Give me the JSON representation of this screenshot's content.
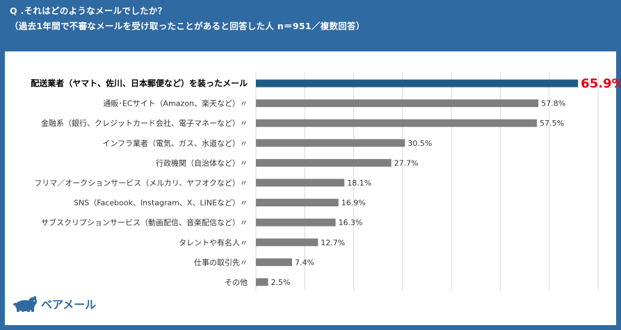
{
  "header": {
    "question": "Q .それはどのようなメールでしたか？",
    "subtitle": "（過去1年間で不審なメールを受け取ったことがあると回答した人 n＝951／複数回答）"
  },
  "brand": {
    "name": "ベアメール",
    "logo_icon": "bear-logo-icon"
  },
  "colors": {
    "background": "#2f6aa2",
    "highlight_bar": "#1e5c86",
    "bar": "#7f7f7f",
    "highlight_value": "#e60012",
    "grid": "#d9d9d9"
  },
  "chart_data": {
    "type": "bar",
    "orientation": "horizontal",
    "categories": [
      "配送業者（ヤマト、佐川、日本郵便など）を装ったメール",
      "通販･ECサイト（Amazon、楽天など）〃",
      "金融系（銀行、クレジットカード会社、電子マネーなど）〃",
      "インフラ業者（電気、ガス、水道など）〃",
      "行政機関（自治体など）〃",
      "フリマ／オークションサービス（メルカリ、ヤフオクなど）〃",
      "SNS（Facebook、Instagram、X、LINEなど）〃",
      "サブスクリプションサービス（動画配信、音楽配信など）〃",
      "タレントや有名人〃",
      "仕事の取引先〃",
      "その他"
    ],
    "values": [
      65.9,
      57.8,
      57.5,
      30.5,
      27.7,
      18.1,
      16.9,
      16.3,
      12.7,
      7.4,
      2.5
    ],
    "value_labels": [
      "65.9%",
      "57.8%",
      "57.5%",
      "30.5%",
      "27.7%",
      "18.1%",
      "16.9%",
      "16.3%",
      "12.7%",
      "7.4%",
      "2.5%"
    ],
    "highlight_index": 0,
    "xlim": [
      0,
      70
    ],
    "grid": true,
    "legend": false
  }
}
